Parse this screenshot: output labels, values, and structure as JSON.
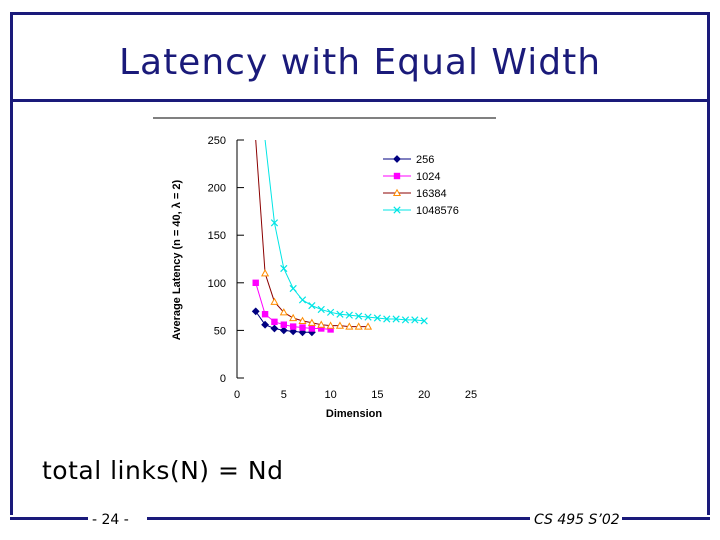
{
  "slide": {
    "title": "Latency with Equal Width",
    "formula": "total links(N) = Nd",
    "page_number": "- 24 -",
    "course": "CS 495 S’02"
  },
  "colors": {
    "frame": "#1a1a7a",
    "s256": "#000080",
    "s1024": "#ff00ff",
    "s16384": "#8b0000",
    "s16384_marker": "#ff8c00",
    "s1048576": "#00e5e5"
  },
  "chart_data": {
    "type": "line",
    "title": "",
    "xlabel": "Dimension",
    "ylabel": "Average Latency (n = 40, λ = 2)",
    "xlim": [
      0,
      25
    ],
    "ylim": [
      0,
      250
    ],
    "xticks": [
      "0",
      "5",
      "10",
      "15",
      "20",
      "25"
    ],
    "yticks": [
      "0",
      "50",
      "100",
      "150",
      "200",
      "250"
    ],
    "legend_position": "top-right",
    "series": [
      {
        "name": "256",
        "marker": "diamond",
        "x": [
          2,
          3,
          4,
          5,
          6,
          7,
          8
        ],
        "y": [
          70,
          56,
          52,
          50,
          49,
          48,
          48
        ]
      },
      {
        "name": "1024",
        "marker": "square",
        "x": [
          2,
          3,
          4,
          5,
          6,
          7,
          8,
          9,
          10
        ],
        "y": [
          100,
          67,
          59,
          56,
          54,
          53,
          52,
          52,
          51
        ]
      },
      {
        "name": "16384",
        "marker": "triangle",
        "x": [
          2,
          3,
          4,
          5,
          6,
          7,
          8,
          9,
          10,
          11,
          12,
          13,
          14
        ],
        "y": [
          250,
          110,
          80,
          69,
          63,
          60,
          58,
          56,
          55,
          55,
          54,
          54,
          54
        ]
      },
      {
        "name": "1048576",
        "marker": "x",
        "x": [
          3,
          4,
          5,
          6,
          7,
          8,
          9,
          10,
          11,
          12,
          13,
          14,
          15,
          16,
          17,
          18,
          19,
          20
        ],
        "y": [
          250,
          163,
          115,
          94,
          82,
          76,
          72,
          69,
          67,
          66,
          65,
          64,
          63,
          62,
          62,
          61,
          61,
          60
        ]
      }
    ]
  }
}
